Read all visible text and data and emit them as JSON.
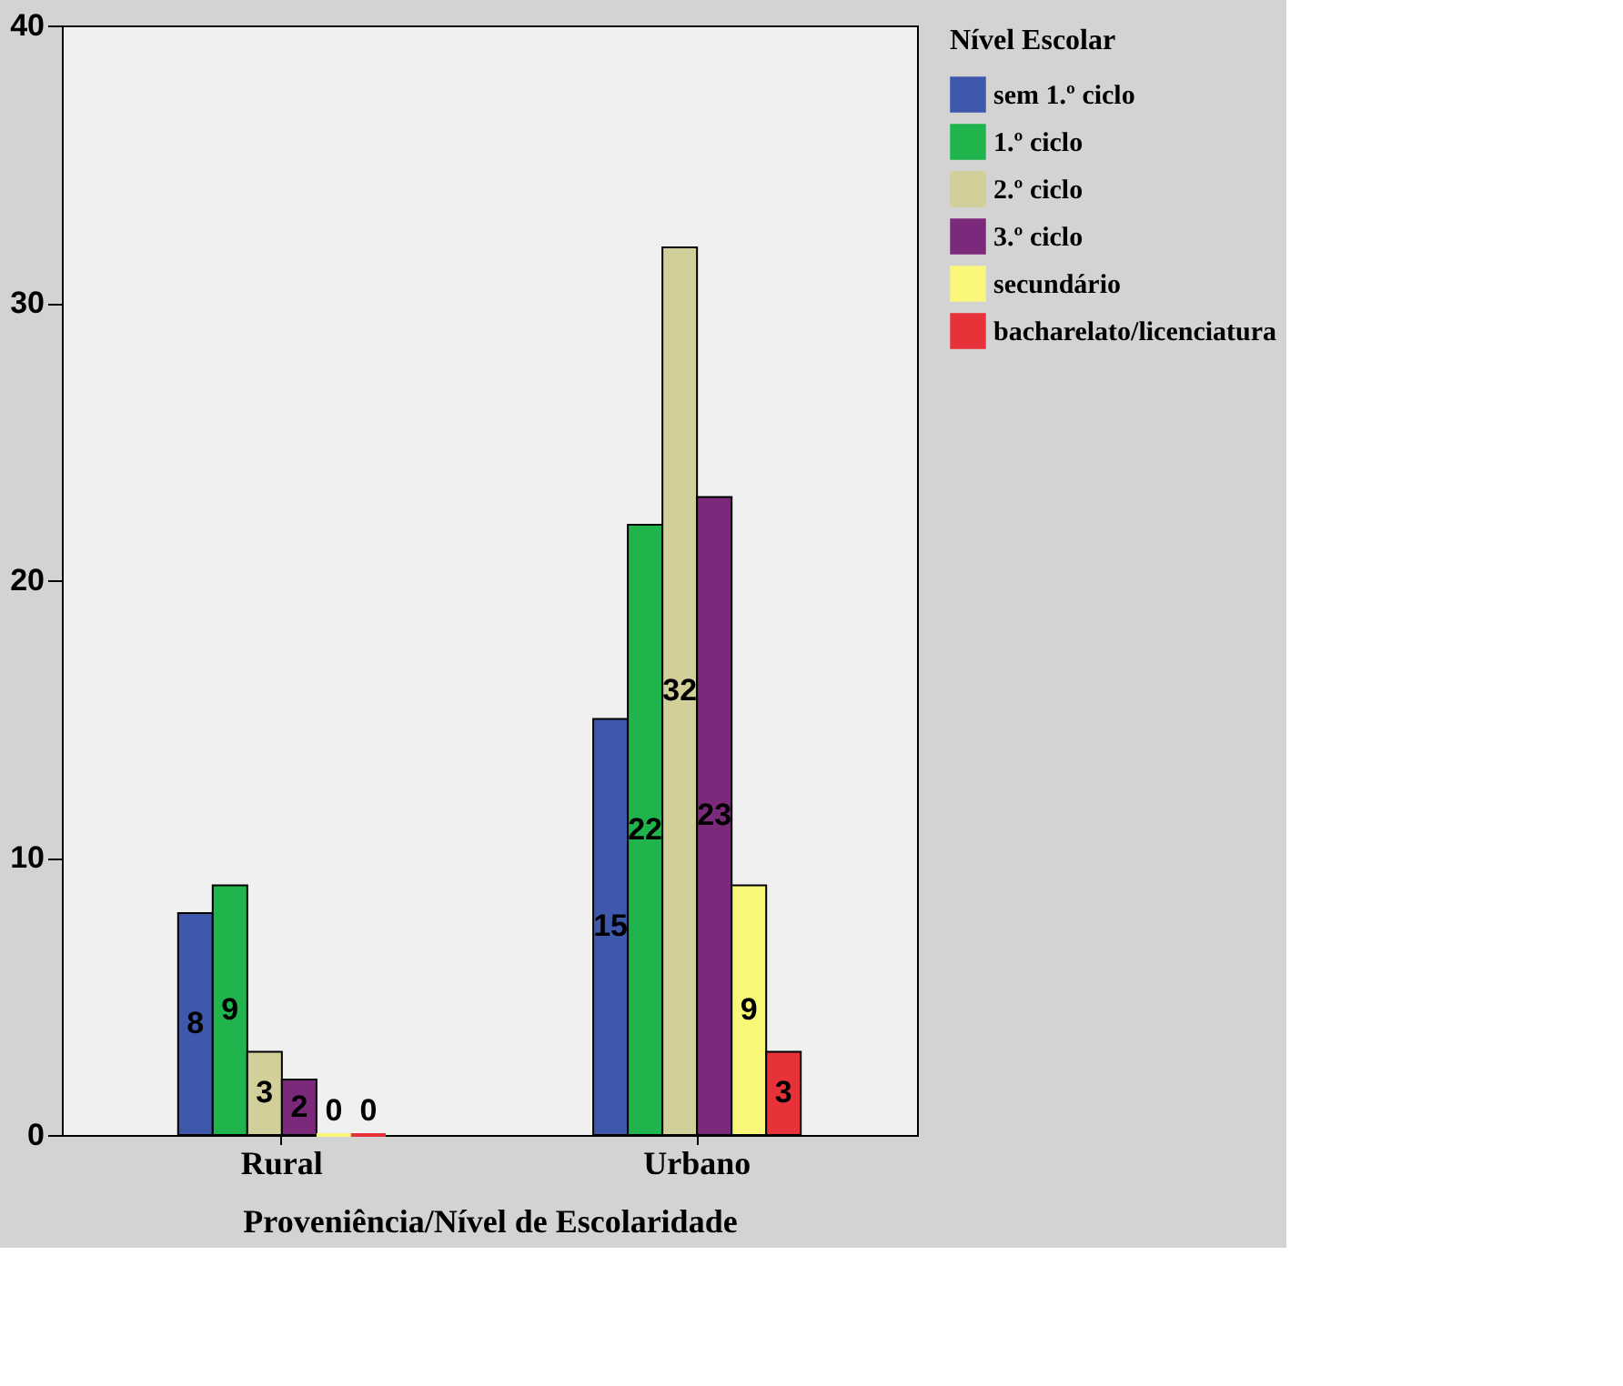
{
  "chart_data": {
    "type": "bar",
    "xlabel": "Proveniência/Nível de Escolaridade",
    "legend_title": "Nível Escolar",
    "categories": [
      "Rural",
      "Urbano"
    ],
    "series": [
      {
        "name": "sem 1.º ciclo",
        "color": "#3e58ac",
        "values": [
          8,
          15
        ]
      },
      {
        "name": "1.º ciclo",
        "color": "#1fb44c",
        "values": [
          9,
          22
        ]
      },
      {
        "name": "2.º ciclo",
        "color": "#d3cf9a",
        "values": [
          3,
          32
        ]
      },
      {
        "name": "3.º ciclo",
        "color": "#7b2a7b",
        "values": [
          2,
          23
        ]
      },
      {
        "name": "secundário",
        "color": "#f9f77a",
        "values": [
          0,
          9
        ]
      },
      {
        "name": "bacharelato/licenciatura",
        "color": "#e8323a",
        "values": [
          0,
          3
        ]
      }
    ],
    "ylim": [
      0,
      40
    ],
    "yticks": [
      0,
      10,
      20,
      30,
      40
    ],
    "data_labels": true,
    "grid": false,
    "legend": "top right"
  }
}
